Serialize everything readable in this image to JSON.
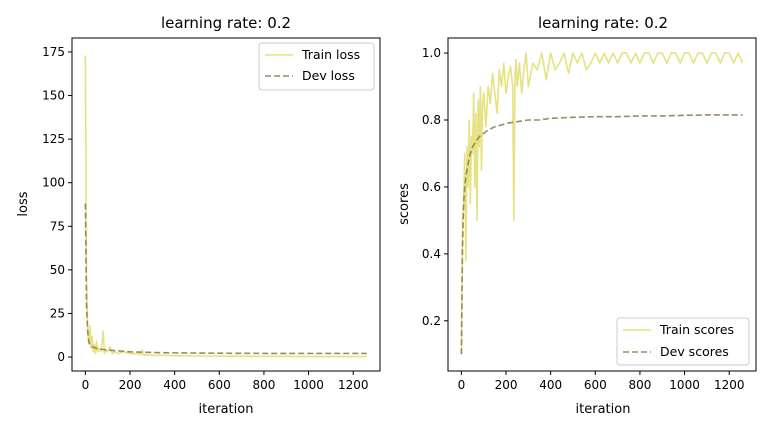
{
  "colors": {
    "train": "#d9d340",
    "dev": "#8f7f4f",
    "axis": "#000000",
    "legend_border": "#cccccc"
  },
  "chart_data": [
    {
      "type": "line",
      "title": "learning rate: 0.2",
      "xlabel": "iteration",
      "ylabel": "loss",
      "xlim": [
        -60,
        1320
      ],
      "ylim": [
        -8,
        183
      ],
      "xticks": [
        0,
        200,
        400,
        600,
        800,
        1000,
        1200
      ],
      "yticks": [
        0,
        25,
        50,
        75,
        100,
        125,
        150,
        175
      ],
      "tick_labels_x": [
        "0",
        "200",
        "400",
        "600",
        "800",
        "1000",
        "1200"
      ],
      "tick_labels_y": [
        "0",
        "25",
        "50",
        "75",
        "100",
        "125",
        "150",
        "175"
      ],
      "legend_position": "upper right",
      "series": [
        {
          "name": "Train loss",
          "style": "solid",
          "x": [
            0,
            5,
            10,
            15,
            20,
            25,
            30,
            35,
            40,
            45,
            50,
            55,
            60,
            70,
            80,
            85,
            90,
            100,
            110,
            120,
            130,
            150,
            170,
            200,
            230,
            250,
            255,
            260,
            300,
            350,
            400,
            500,
            600,
            700,
            800,
            900,
            1000,
            1100,
            1200,
            1260
          ],
          "y": [
            173,
            45,
            17,
            8,
            18,
            5,
            12,
            3,
            7,
            2,
            9,
            3,
            5,
            3,
            15,
            2,
            4,
            3,
            6,
            2,
            3,
            2,
            3,
            2,
            2,
            1.5,
            4,
            1.2,
            1,
            1,
            0.8,
            0.6,
            0.5,
            0.5,
            0.4,
            0.4,
            0.3,
            0.3,
            0.3,
            0.3
          ]
        },
        {
          "name": "Dev loss",
          "style": "dashed",
          "x": [
            0,
            5,
            10,
            15,
            20,
            30,
            40,
            50,
            70,
            100,
            150,
            200,
            300,
            400,
            600,
            800,
            1000,
            1200,
            1260
          ],
          "y": [
            88,
            30,
            15,
            9,
            7,
            6,
            5.5,
            5,
            4.5,
            4,
            3.5,
            3,
            2.6,
            2.4,
            2.2,
            2.1,
            2.1,
            2.1,
            2.1
          ]
        }
      ]
    },
    {
      "type": "line",
      "title": "learning rate: 0.2",
      "xlabel": "iteration",
      "ylabel": "scores",
      "xlim": [
        -60,
        1320
      ],
      "ylim": [
        0.05,
        1.045
      ],
      "xticks": [
        0,
        200,
        400,
        600,
        800,
        1000,
        1200
      ],
      "yticks": [
        0.2,
        0.4,
        0.6,
        0.8,
        1.0
      ],
      "tick_labels_x": [
        "0",
        "200",
        "400",
        "600",
        "800",
        "1000",
        "1200"
      ],
      "tick_labels_y": [
        "0.2",
        "0.4",
        "0.6",
        "0.8",
        "1.0"
      ],
      "legend_position": "lower right",
      "series": [
        {
          "name": "Train scores",
          "style": "solid",
          "x": [
            0,
            5,
            10,
            15,
            20,
            25,
            30,
            35,
            40,
            45,
            50,
            55,
            60,
            65,
            70,
            75,
            80,
            85,
            90,
            95,
            100,
            110,
            120,
            130,
            140,
            150,
            160,
            170,
            180,
            190,
            200,
            210,
            220,
            230,
            235,
            240,
            245,
            250,
            260,
            270,
            280,
            290,
            300,
            320,
            340,
            360,
            380,
            400,
            420,
            440,
            460,
            480,
            500,
            520,
            540,
            560,
            580,
            600,
            620,
            640,
            660,
            680,
            700,
            720,
            740,
            760,
            780,
            800,
            820,
            840,
            860,
            880,
            900,
            920,
            940,
            960,
            980,
            1000,
            1020,
            1040,
            1060,
            1080,
            1100,
            1120,
            1140,
            1160,
            1180,
            1200,
            1220,
            1240,
            1260
          ],
          "y": [
            0.1,
            0.5,
            0.55,
            0.7,
            0.38,
            0.72,
            0.6,
            0.8,
            0.55,
            0.75,
            0.7,
            0.88,
            0.6,
            0.82,
            0.5,
            0.86,
            0.72,
            0.9,
            0.65,
            0.85,
            0.88,
            0.78,
            0.9,
            0.85,
            0.94,
            0.88,
            0.82,
            0.95,
            0.9,
            0.97,
            0.88,
            0.93,
            0.96,
            0.9,
            0.5,
            0.93,
            0.98,
            0.9,
            0.97,
            0.88,
            0.95,
            1.0,
            0.9,
            0.97,
            0.95,
            1.0,
            0.92,
            1.0,
            0.95,
            0.97,
            1.0,
            0.94,
            1.0,
            0.97,
            1.0,
            0.95,
            0.97,
            1.0,
            0.97,
            1.0,
            0.97,
            1.0,
            0.97,
            1.0,
            1.0,
            0.97,
            1.0,
            0.97,
            1.0,
            1.0,
            0.97,
            1.0,
            1.0,
            0.97,
            1.0,
            1.0,
            0.97,
            1.0,
            1.0,
            0.97,
            1.0,
            1.0,
            0.97,
            1.0,
            1.0,
            0.97,
            1.0,
            1.0,
            0.97,
            1.0,
            0.97
          ]
        },
        {
          "name": "Dev scores",
          "style": "dashed",
          "x": [
            0,
            5,
            10,
            15,
            20,
            30,
            40,
            50,
            60,
            70,
            80,
            100,
            120,
            150,
            180,
            200,
            250,
            300,
            350,
            400,
            500,
            600,
            700,
            800,
            900,
            1000,
            1100,
            1200,
            1260
          ],
          "y": [
            0.1,
            0.42,
            0.55,
            0.6,
            0.63,
            0.67,
            0.7,
            0.72,
            0.73,
            0.74,
            0.75,
            0.76,
            0.77,
            0.78,
            0.785,
            0.79,
            0.795,
            0.8,
            0.8,
            0.805,
            0.808,
            0.81,
            0.81,
            0.812,
            0.812,
            0.814,
            0.815,
            0.815,
            0.815
          ]
        }
      ]
    }
  ]
}
